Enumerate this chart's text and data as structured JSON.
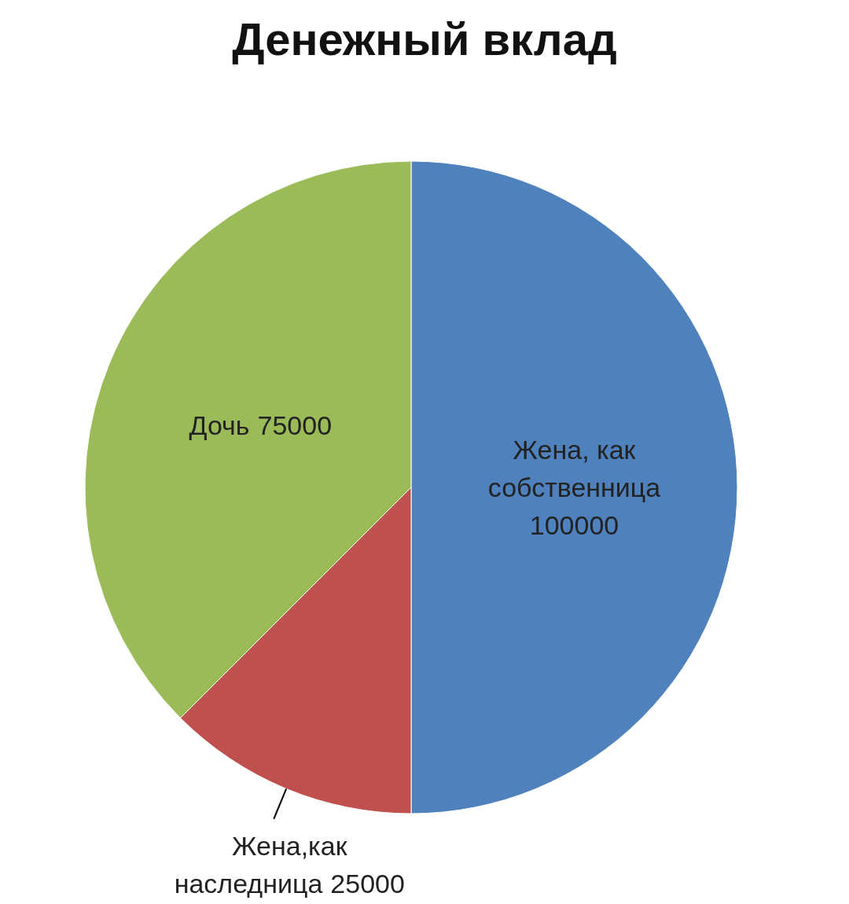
{
  "chart_data": {
    "type": "pie",
    "title": "Денежный вклад",
    "categories": [
      "Жена, как собственница",
      "Жена,как наследница",
      "Дочь"
    ],
    "values": [
      100000,
      25000,
      75000
    ],
    "colors": [
      "#4f81bd",
      "#c0504d",
      "#9bbb59"
    ],
    "data_labels": true,
    "legend": false
  }
}
